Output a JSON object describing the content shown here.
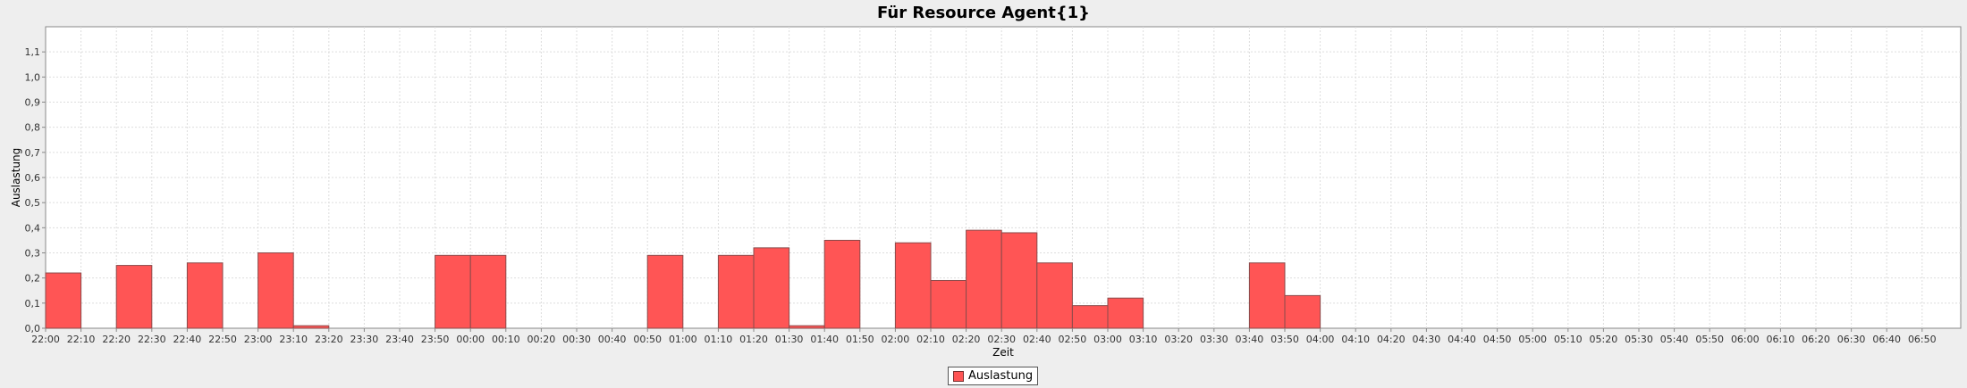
{
  "chart_data": {
    "type": "bar",
    "title": "Für Resource Agent{1}",
    "xlabel": "Zeit",
    "ylabel": "Auslastung",
    "ylim": [
      0,
      1.2
    ],
    "y_ticks": [
      "0,0",
      "0,1",
      "0,2",
      "0,3",
      "0,4",
      "0,5",
      "0,6",
      "0,7",
      "0,8",
      "0,9",
      "1,0",
      "1,1"
    ],
    "x_start_label": "22:00",
    "x_interval_minutes": 10,
    "categories": [
      "22:00",
      "22:10",
      "22:20",
      "22:30",
      "22:40",
      "22:50",
      "23:00",
      "23:10",
      "23:20",
      "23:30",
      "23:40",
      "23:50",
      "00:00",
      "00:10",
      "00:20",
      "00:30",
      "00:40",
      "00:50",
      "01:00",
      "01:10",
      "01:20",
      "01:30",
      "01:40",
      "01:50",
      "02:00",
      "02:10",
      "02:20",
      "02:30",
      "02:40",
      "02:50",
      "03:00",
      "03:10",
      "03:20",
      "03:30",
      "03:40",
      "03:50",
      "04:00",
      "04:10",
      "04:20",
      "04:30",
      "04:40",
      "04:50",
      "05:00",
      "05:10",
      "05:20",
      "05:30",
      "05:40",
      "05:50",
      "06:00",
      "06:10",
      "06:20",
      "06:30",
      "06:40",
      "06:50"
    ],
    "series": [
      {
        "name": "Auslastung",
        "color": "#ff5555",
        "values": [
          0.22,
          0,
          0.25,
          0,
          0.26,
          0,
          0.3,
          0.01,
          0,
          0,
          0,
          0.29,
          0.29,
          0,
          0,
          0,
          0,
          0.29,
          0,
          0.29,
          0.32,
          0.01,
          0.35,
          0,
          0.34,
          0.19,
          0.39,
          0.38,
          0.26,
          0.09,
          0.12,
          0,
          0,
          0,
          0.26,
          0.13,
          0,
          0,
          0,
          0,
          0,
          0,
          0,
          0,
          0,
          0,
          0,
          0,
          0,
          0,
          0,
          0,
          0,
          0
        ]
      }
    ],
    "grid": true,
    "legend_position": "bottom"
  }
}
